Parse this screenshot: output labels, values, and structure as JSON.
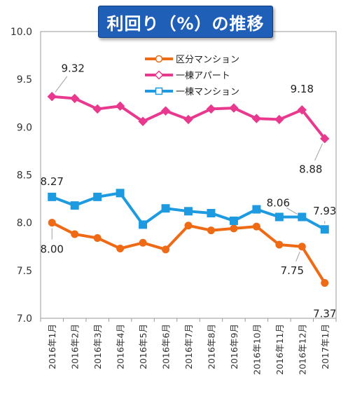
{
  "chart_data": {
    "type": "line",
    "title": "利回り（%）の推移",
    "categories": [
      "2016年1月",
      "2016年2月",
      "2016年3月",
      "2016年4月",
      "2016年5月",
      "2016年6月",
      "2016年7月",
      "2016年8月",
      "2016年9月",
      "2016年10月",
      "2016年11月",
      "2016年12月",
      "2017年1月"
    ],
    "ylim": [
      7.0,
      10.0
    ],
    "yticks": [
      "7.0",
      "7.5",
      "8.0",
      "8.5",
      "9.0",
      "9.5",
      "10.0"
    ],
    "grid": false,
    "legend_position": "top-center",
    "series": [
      {
        "name": "区分マンション",
        "color": "#ee6a14",
        "marker": "circle",
        "values": [
          8.0,
          7.88,
          7.84,
          7.73,
          7.79,
          7.72,
          7.97,
          7.92,
          7.94,
          7.96,
          7.77,
          7.75,
          7.37
        ]
      },
      {
        "name": "一棟アパート",
        "color": "#e8398f",
        "marker": "diamond",
        "values": [
          9.32,
          9.3,
          9.19,
          9.22,
          9.06,
          9.17,
          9.08,
          9.19,
          9.2,
          9.09,
          9.08,
          9.18,
          8.88
        ]
      },
      {
        "name": "一棟マンション",
        "color": "#1e9be0",
        "marker": "square",
        "values": [
          8.27,
          8.18,
          8.27,
          8.31,
          7.98,
          8.15,
          8.12,
          8.1,
          8.02,
          8.14,
          8.06,
          8.06,
          7.93
        ]
      }
    ],
    "annotations": [
      {
        "series": 0,
        "index": 0,
        "text": "8.00"
      },
      {
        "series": 0,
        "index": 11,
        "text": "7.75"
      },
      {
        "series": 0,
        "index": 12,
        "text": "7.37"
      },
      {
        "series": 1,
        "index": 0,
        "text": "9.32"
      },
      {
        "series": 1,
        "index": 11,
        "text": "9.18"
      },
      {
        "series": 1,
        "index": 12,
        "text": "8.88"
      },
      {
        "series": 2,
        "index": 0,
        "text": "8.27"
      },
      {
        "series": 2,
        "index": 11,
        "text": "8.06"
      },
      {
        "series": 2,
        "index": 12,
        "text": "7.93"
      }
    ]
  }
}
